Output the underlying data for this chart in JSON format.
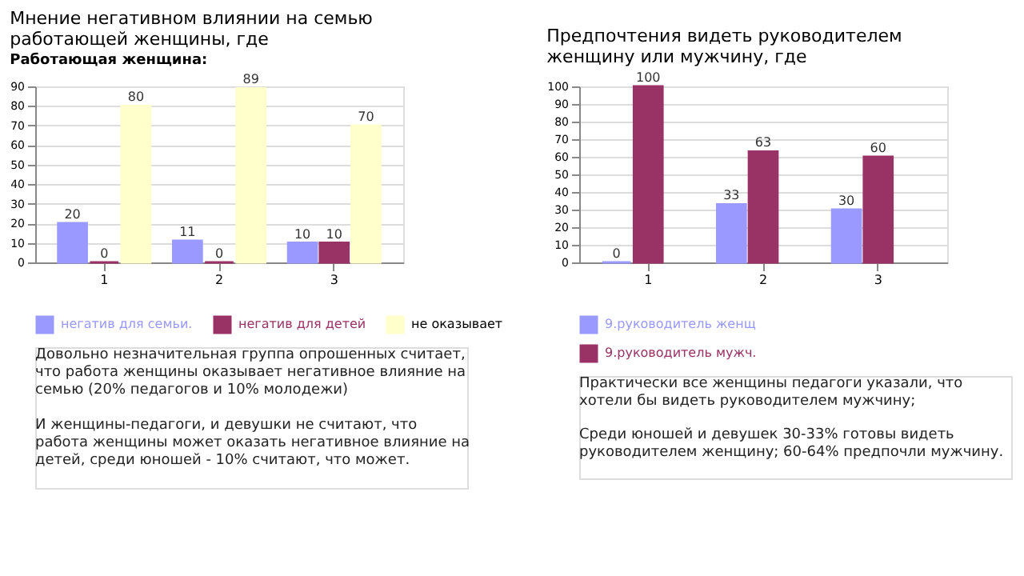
{
  "chart_data": [
    {
      "type": "bar",
      "title": "Мнение  негативном влиянии на семью работающей женщины, где",
      "subtitle": "Работающая женщина:",
      "categories": [
        "1",
        "2",
        "3"
      ],
      "series": [
        {
          "name": "негатив для семьи.",
          "color": "#9999ff",
          "values": [
            20,
            11,
            10
          ]
        },
        {
          "name": "негатив для детей",
          "color": "#993366",
          "values": [
            0,
            0,
            10
          ]
        },
        {
          "name": "не оказывает",
          "color": "#ffffcc",
          "values": [
            80,
            89,
            70
          ]
        }
      ],
      "ylim": [
        0,
        90
      ],
      "yticks": [
        0,
        10,
        20,
        30,
        40,
        50,
        60,
        70,
        80,
        90
      ],
      "grid": "y",
      "legend": "bottom",
      "data_labels": true,
      "annotations": [
        "Довольно незначительная группа опрошенных считает, что работа женщины оказывает негативное влияние на семью (20% педагогов и 10% молодежи)",
        "И женщины-педагоги, и девушки не считают, что работа женщины может оказать негативное влияние на детей, среди юношей - 10% считают, что может."
      ]
    },
    {
      "type": "bar",
      "title": "Предпочтения видеть руководителем женщину или мужчину, где",
      "categories": [
        "1",
        "2",
        "3"
      ],
      "series": [
        {
          "name": "9.руководитель женщ",
          "color": "#9999ff",
          "values": [
            0,
            33,
            30
          ]
        },
        {
          "name": "9.руководитель мужч.",
          "color": "#993366",
          "values": [
            100,
            63,
            60
          ]
        }
      ],
      "ylim": [
        0,
        100
      ],
      "yticks": [
        0,
        10,
        20,
        30,
        40,
        50,
        60,
        70,
        80,
        90,
        100
      ],
      "grid": "y",
      "legend": "bottom",
      "data_labels": true,
      "annotations": [
        "Практически все женщины педагоги указали, что хотели бы видеть руководителем мужчину;",
        "Среди юношей и девушек 30-33% готовы видеть руководителем женщину; 60-64% предпочли мужчину."
      ]
    }
  ]
}
